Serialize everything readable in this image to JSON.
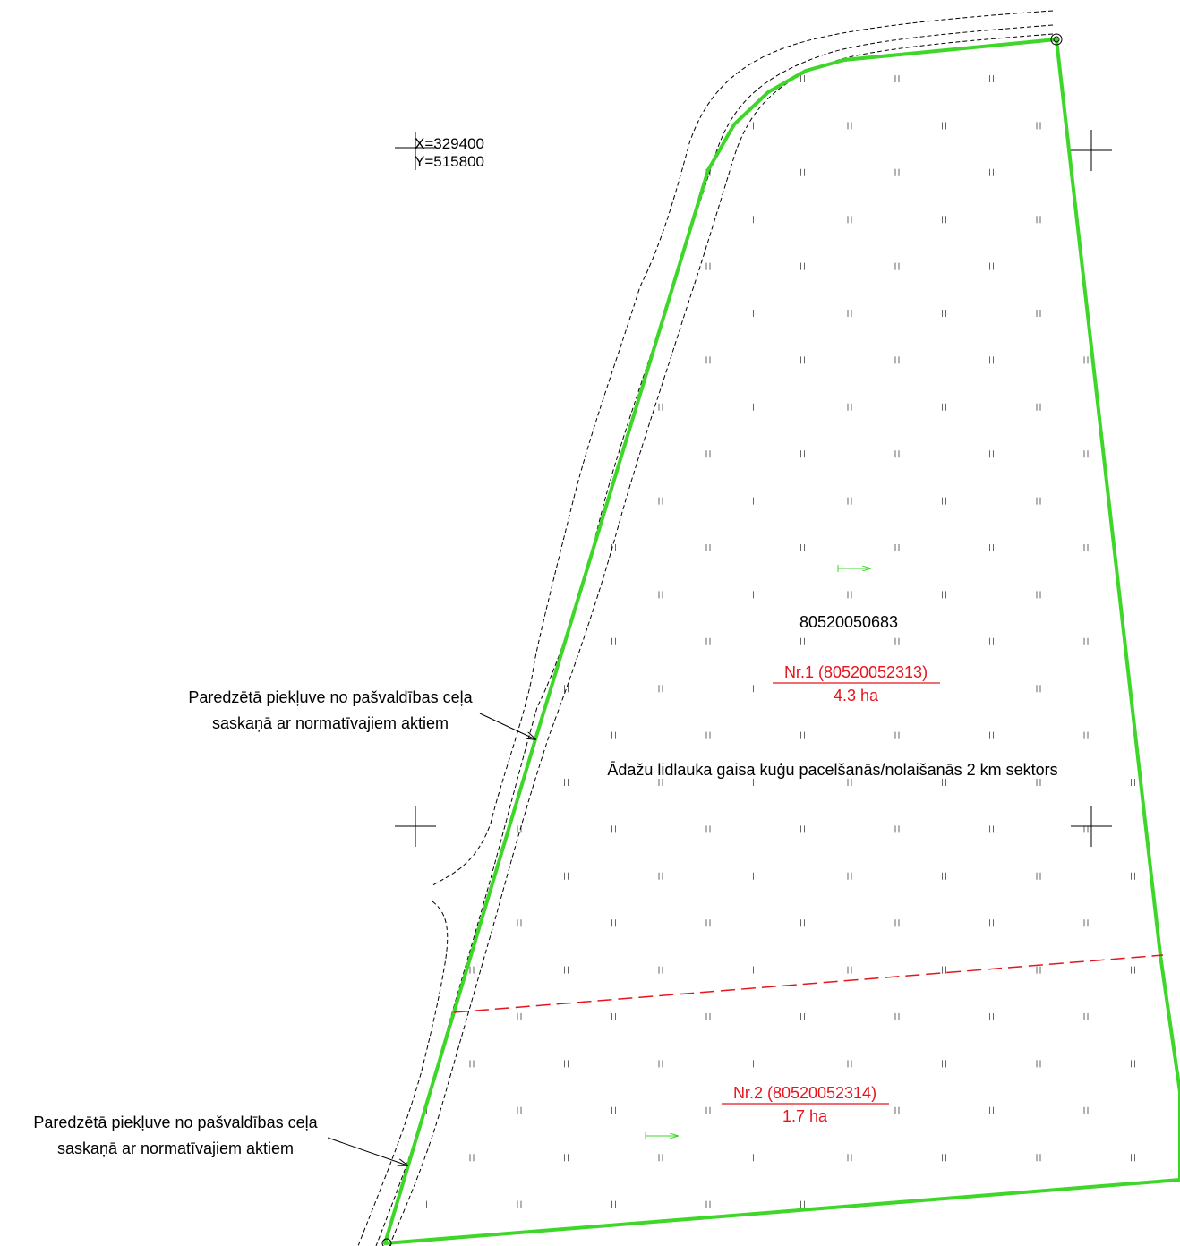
{
  "coordinate_label": {
    "x": "X=329400",
    "y": "Y=515800"
  },
  "cadastral_number": "80520050683",
  "parcels": [
    {
      "label": "Nr.1 (80520052313)",
      "area": "4.3 ha"
    },
    {
      "label": "Nr.2 (80520052314)",
      "area": "1.7 ha"
    }
  ],
  "sector_label": "Ādažu lidlauka gaisa kuģu pacelšanās/nolaišanās 2 km sektors",
  "access_notes": [
    {
      "line1": "Paredzētā piekļuve no pašvaldības ceļa",
      "line2": "saskaņā ar normatīvajiem aktiem"
    },
    {
      "line1": "Paredzētā piekļuve no pašvaldības ceļa",
      "line2": "saskaņā ar normatīvajiem aktiem"
    }
  ],
  "colors": {
    "boundary": "#3fd62a",
    "division_line": "#e8141b",
    "parcel_text": "#e8141b",
    "road_edge": "#000000"
  },
  "symbols": {
    "meadow_hatch": "meadow-symbol",
    "grid_cross": "grid-cross-icon",
    "access_arrow": "arrow-icon",
    "direction_marker": "green-arrow-icon"
  }
}
